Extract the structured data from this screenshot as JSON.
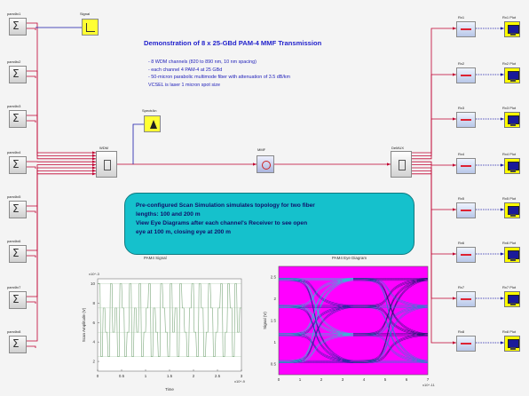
{
  "diagram": {
    "title": "Demonstration of 8 x 25-GBd PAM-4 MMF Transmission",
    "notes": [
      "- 8 WDM channels (820 to 890 nm, 10 nm spacing)",
      "- each channel 4 PAM-4 at 25 GBd",
      "- 50-micron parabolic multimode fiber with attenuation of 3.5 dB/km",
      "  VCSEL is laser 1 micron spot size"
    ],
    "callout": [
      "Pre-configured Scan Simulation simulates topology for two fiber",
      "lengths: 100 and 200 m",
      "View Eye Diagrams after each channel's Receiver to see open",
      "eye at 100 m, closing eye at 200 m"
    ],
    "transmitters": [
      {
        "label": "pam4tx1"
      },
      {
        "label": "pam4tx2"
      },
      {
        "label": "pam4tx3"
      },
      {
        "label": "pam4tx4"
      },
      {
        "label": "pam4tx5"
      },
      {
        "label": "pam4tx6"
      },
      {
        "label": "pam4tx7"
      },
      {
        "label": "pam4tx8"
      }
    ],
    "receivers": [
      {
        "label": "Rx1",
        "eye_label": "Rx1 Plot"
      },
      {
        "label": "Rx2",
        "eye_label": "Rx2 Plot"
      },
      {
        "label": "Rx3",
        "eye_label": "Rx3 Plot"
      },
      {
        "label": "Rx4",
        "eye_label": "Rx4 Plot"
      },
      {
        "label": "Rx5",
        "eye_label": "Rx5 Plot"
      },
      {
        "label": "Rx6",
        "eye_label": "Rx6 Plot"
      },
      {
        "label": "Rx7",
        "eye_label": "Rx7 Plot"
      },
      {
        "label": "Rx8",
        "eye_label": "Rx8 Plot"
      }
    ],
    "blocks": {
      "signal": "Signal",
      "spectrum": "SpectrAn",
      "mux": "WDM",
      "fiber": "MMF",
      "demux": "DeMUX"
    },
    "colors": {
      "callout_fill": "#15c1cc",
      "wire": "#c00030",
      "wire_out": "#1a1aaa",
      "eye_bg": "#ff00ff",
      "trace": "#70a070"
    }
  },
  "chart_data": [
    {
      "type": "line",
      "title": "PAM4 Signal",
      "xlabel": "Time",
      "ylabel": "Scan Amplitude (V)",
      "x_multiplier": "x10^-9",
      "y_multiplier": "x10^-3",
      "xticks": [
        "0",
        "0.5",
        "1",
        "1.5",
        "2",
        "2.5",
        "3"
      ],
      "yticks": [
        "2",
        "4",
        "6",
        "8",
        "10"
      ],
      "ylim": [
        1,
        10.5
      ],
      "levels": [
        2.5,
        5,
        7.5,
        10
      ],
      "values": [
        10,
        2.5,
        7.5,
        5,
        2.5,
        10,
        5,
        7.5,
        2.5,
        10,
        7.5,
        2.5,
        5,
        10,
        2.5,
        7.5,
        5,
        10,
        2.5,
        5,
        7.5,
        10,
        2.5,
        7.5,
        5,
        2.5,
        10,
        7.5,
        5,
        2.5,
        10,
        5,
        7.5,
        2.5,
        10,
        7.5,
        5,
        2.5,
        7.5,
        10,
        5,
        2.5,
        10,
        7.5,
        2.5,
        5,
        10,
        7.5,
        2.5,
        5,
        7.5,
        10,
        2.5,
        5,
        10,
        7.5,
        2.5,
        10,
        5,
        7.5
      ]
    },
    {
      "type": "heatmap",
      "title": "PAM4 Eye Diagram",
      "xlabel": "",
      "ylabel": "Signal (V)",
      "x_multiplier": "x10^-11",
      "xticks": [
        "0",
        "1",
        "2",
        "3",
        "4",
        "5",
        "6",
        "7"
      ],
      "yticks": [
        "0.5",
        "1",
        "1.5",
        "2",
        "2.5"
      ]
    }
  ]
}
